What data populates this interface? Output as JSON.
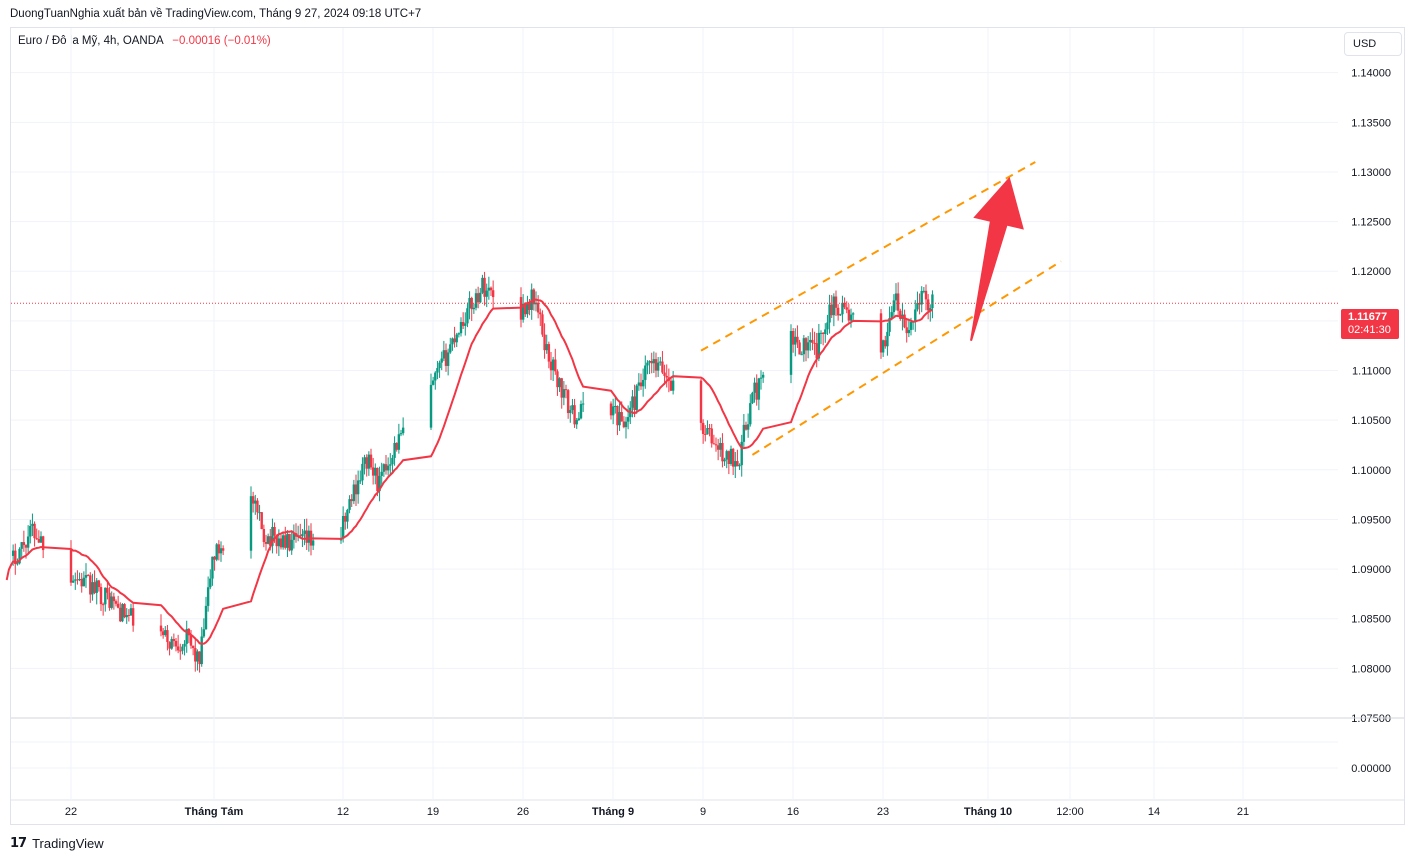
{
  "header": {
    "publish_text": "DuongTuanNghia xuất bản về TradingView.com, Tháng 9 27, 2024 09:18 UTC+7",
    "symbol": "Euro / Đô la Mỹ, 4h, OANDA",
    "change": "−0.00016 (−0.01%)",
    "currency": "USD"
  },
  "price_badge": {
    "price": "1.11677",
    "countdown": "02:41:30"
  },
  "footer": {
    "logo_text": "TradingView"
  },
  "colors": {
    "up": "#089981",
    "down": "#f23645",
    "ma": "#f23645",
    "channel": "#ff9800",
    "arrow": "#f23645",
    "grid": "#f0f3fa",
    "axis_text": "#131722",
    "price_line": "#f23645"
  },
  "icons": {
    "logo": "tradingview-logo-icon"
  },
  "chart_data": {
    "type": "candlestick",
    "title": "",
    "y_ticks": [
      "1.14000",
      "1.13500",
      "1.13000",
      "1.12500",
      "1.12000",
      "1.11500",
      "1.11000",
      "1.10500",
      "1.10000",
      "1.09500",
      "1.09000",
      "1.08500",
      "1.08000",
      "1.07500"
    ],
    "volume_ticks": [
      "0.00000"
    ],
    "x_ticks": [
      "22",
      "Tháng Tám",
      "12",
      "19",
      "26",
      "Tháng 9",
      "9",
      "16",
      "23",
      "Tháng 10",
      "12:00",
      "14",
      "21"
    ],
    "ylim": [
      1.075,
      1.1445
    ],
    "last_price": 1.11677,
    "anchors": [
      {
        "date": "2024-07-17",
        "close": 1.09
      },
      {
        "date": "2024-07-19",
        "close": 1.094
      },
      {
        "date": "2024-07-22",
        "close": 1.0895
      },
      {
        "date": "2024-07-25",
        "close": 1.087
      },
      {
        "date": "2024-07-26",
        "close": 1.0855
      },
      {
        "date": "2024-07-30",
        "close": 1.0825
      },
      {
        "date": "2024-07-31",
        "close": 1.083
      },
      {
        "date": "2024-08-01",
        "close": 1.0805
      },
      {
        "date": "2024-08-02",
        "close": 1.091
      },
      {
        "date": "2024-08-05",
        "close": 1.097
      },
      {
        "date": "2024-08-06",
        "close": 1.0935
      },
      {
        "date": "2024-08-08",
        "close": 1.0925
      },
      {
        "date": "2024-08-12",
        "close": 1.0935
      },
      {
        "date": "2024-08-13",
        "close": 1.098
      },
      {
        "date": "2024-08-14",
        "close": 1.101
      },
      {
        "date": "2024-08-15",
        "close": 1.0985
      },
      {
        "date": "2024-08-16",
        "close": 1.102
      },
      {
        "date": "2024-08-19",
        "close": 1.108
      },
      {
        "date": "2024-08-21",
        "close": 1.114
      },
      {
        "date": "2024-08-23",
        "close": 1.1185
      },
      {
        "date": "2024-08-26",
        "close": 1.116
      },
      {
        "date": "2024-08-27",
        "close": 1.1175
      },
      {
        "date": "2024-08-28",
        "close": 1.112
      },
      {
        "date": "2024-08-29",
        "close": 1.1085
      },
      {
        "date": "2024-08-30",
        "close": 1.1055
      },
      {
        "date": "2024-09-02",
        "close": 1.1065
      },
      {
        "date": "2024-09-03",
        "close": 1.1045
      },
      {
        "date": "2024-09-05",
        "close": 1.1105
      },
      {
        "date": "2024-09-06",
        "close": 1.11
      },
      {
        "date": "2024-09-09",
        "close": 1.1045
      },
      {
        "date": "2024-09-11",
        "close": 1.101
      },
      {
        "date": "2024-09-12",
        "close": 1.1015
      },
      {
        "date": "2024-09-13",
        "close": 1.1075
      },
      {
        "date": "2024-09-16",
        "close": 1.113
      },
      {
        "date": "2024-09-18",
        "close": 1.112
      },
      {
        "date": "2024-09-19",
        "close": 1.1165
      },
      {
        "date": "2024-09-20",
        "close": 1.1165
      },
      {
        "date": "2024-09-23",
        "close": 1.111
      },
      {
        "date": "2024-09-24",
        "close": 1.1175
      },
      {
        "date": "2024-09-25",
        "close": 1.1135
      },
      {
        "date": "2024-09-26",
        "close": 1.1175
      },
      {
        "date": "2024-09-27",
        "close": 1.11677
      }
    ],
    "channel_lines": [
      {
        "from": {
          "date": "2024-09-09",
          "price": 1.112
        },
        "to": {
          "date": "2024-10-05",
          "price": 1.131
        }
      },
      {
        "from": {
          "date": "2024-09-13",
          "price": 1.1015
        },
        "to": {
          "date": "2024-10-07",
          "price": 1.121
        }
      }
    ],
    "arrow": {
      "from": {
        "date": "2024-09-30",
        "price": 1.113
      },
      "to": {
        "date": "2024-10-03",
        "price": 1.1295
      }
    },
    "moving_average": {
      "type": "line",
      "color": "#f23645"
    },
    "grid": true,
    "price_axis_position": "right",
    "volume_pane": true
  }
}
